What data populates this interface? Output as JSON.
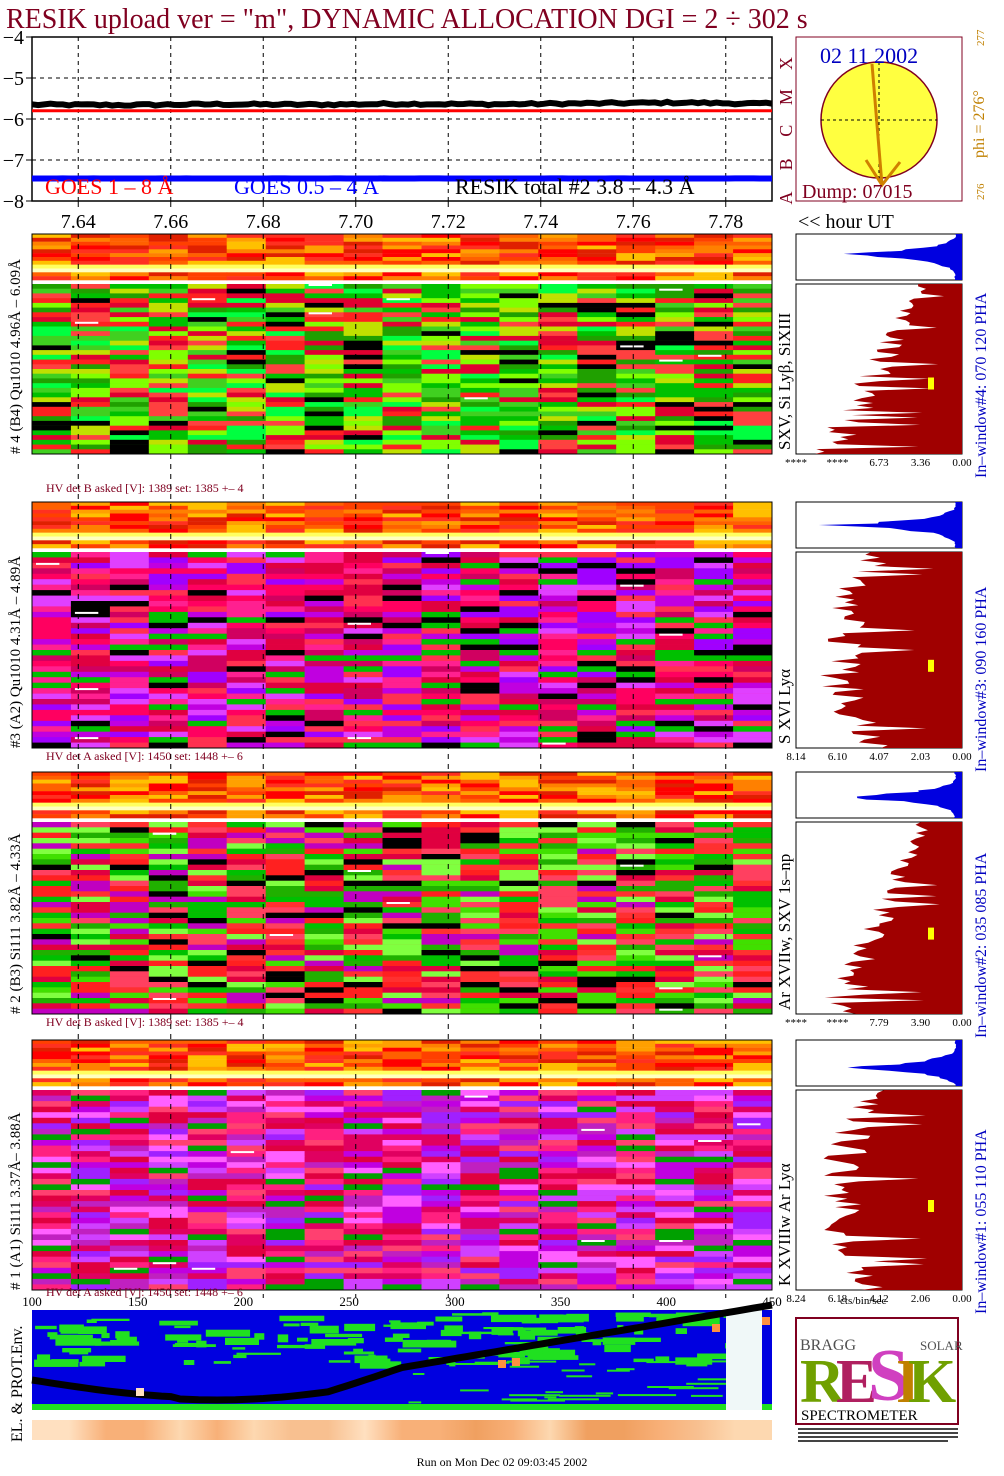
{
  "title": "RESIK upload ver = \"m\", DYNAMIC ALLOCATION  DGI =   2 ÷ 302 s",
  "colors": {
    "title": "#800020",
    "goes_long": "#ff0000",
    "goes_short": "#0000ff",
    "resik_total": "#000000",
    "phi_label": "#c08000",
    "window_label": "#0000c0",
    "histo_main": "#a00000",
    "histo_small": "#0000e0",
    "sun_fill": "#ffff40",
    "sun_outline": "#800020"
  },
  "goes": {
    "chart_data": {
      "type": "line",
      "x": [
        7.63,
        7.65,
        7.67,
        7.69,
        7.71,
        7.73,
        7.75,
        7.77,
        7.79
      ],
      "series": [
        {
          "name": "RESIK total #2  3.8 – 4.3 Å",
          "values": [
            -5.65,
            -5.66,
            -5.64,
            -5.65,
            -5.63,
            -5.64,
            -5.62,
            -5.6,
            -5.63
          ]
        },
        {
          "name": "GOES 1 – 8 Å",
          "values": [
            -5.8,
            -5.8,
            -5.8,
            -5.8,
            -5.8,
            -5.8,
            -5.8,
            -5.8,
            -5.8
          ]
        },
        {
          "name": "GOES 0.5 – 4 Å",
          "values": [
            -7.45,
            -7.45,
            -7.45,
            -7.45,
            -7.45,
            -7.45,
            -7.45,
            -7.45,
            -7.45
          ]
        }
      ],
      "y_ticks": [
        "−4",
        "−5",
        "−6",
        "−7",
        "−8"
      ],
      "ylim": [
        -8,
        -4
      ],
      "xlim": [
        7.63,
        7.79
      ],
      "x_ticks": [
        "7.64",
        "7.66",
        "7.68",
        "7.70",
        "7.72",
        "7.74",
        "7.76",
        "7.78"
      ],
      "xlabel": "<< hour UT",
      "class_letters": [
        "X",
        "M",
        "C",
        "B",
        "A"
      ],
      "legend": [
        "GOES 1 – 8 Å",
        "GOES 0.5 – 4 Å",
        "RESIK total #2  3.8 – 4.3 Å"
      ]
    }
  },
  "sun": {
    "date": "02 11 2002",
    "phi": "phi = 276°",
    "phi_sub": "277",
    "phi_small": "276",
    "dump": "Dump: 07015"
  },
  "detectors": [
    {
      "label": "# 4 (B4) Qu1010 4.96Å – 6.09Å",
      "lines": "SXV, Si Lyβ, SiXIII",
      "window": "In–window#4:  070 120 PHA",
      "hv": "HV det B asked [V]:  1389 set:  1385 +–    4",
      "axis": [
        "****",
        "****",
        "6.73",
        "3.36",
        "0.00"
      ],
      "palette": "green"
    },
    {
      "label": "#3 (A2) Qu1010  4.31Å – 4.89Å",
      "lines": "S XVI Lyα",
      "window": "In–window#3:  090 160 PHA",
      "hv": "HV det A asked [V]:  1450 set:  1448 +–    6",
      "axis": [
        "8.14",
        "6.10",
        "4.07",
        "2.03",
        "0.00"
      ],
      "palette": "magenta"
    },
    {
      "label": "# 2 (B3) Si111  3.82Å – 4.33Å",
      "lines": "Ar XVIIw,  SXV 1s–np",
      "window": "In–window#2:  035 085 PHA",
      "hv": "HV det B asked [V]:  1389 set:  1385 +–    4",
      "axis": [
        "****",
        "****",
        "7.79",
        "3.90",
        "0.00"
      ],
      "palette": "mixed"
    },
    {
      "label": "# 1 (A1) Si111  3.37Å– 3.88Å",
      "lines": "K XVIIIw  Ar Lyα",
      "window": "In–window#1:  055 110 PHA",
      "hv": "HV det A asked [V]:  1450 set:  1448 +–    6",
      "axis": [
        "8.24",
        "6.18",
        "4.12",
        "2.06",
        "0.00"
      ],
      "palette": "magenta2"
    }
  ],
  "histo_unit": "cts/bin/sec",
  "env": {
    "label": "EL. & PROT.Env.",
    "x_ticks": [
      "100",
      "150",
      "200",
      "250",
      "300",
      "350",
      "400",
      "450"
    ],
    "xlim": [
      100,
      450
    ]
  },
  "logo": {
    "letters": "RESIK",
    "sub": "SPECTROMETER",
    "bragg": "BRAGG",
    "solar": "SOLAR"
  },
  "footer": "Run on Mon Dec 02 09:03:45 2002"
}
